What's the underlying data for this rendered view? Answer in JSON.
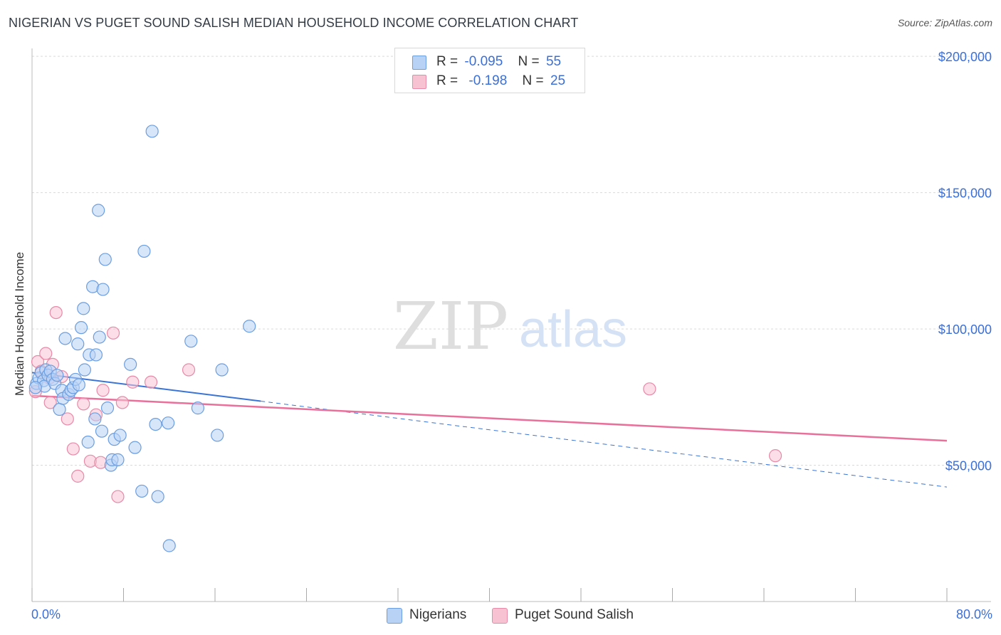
{
  "title": "NIGERIAN VS PUGET SOUND SALISH MEDIAN HOUSEHOLD INCOME CORRELATION CHART",
  "source": "Source: ZipAtlas.com",
  "watermark": {
    "zip": "ZIP",
    "atlas": "atlas"
  },
  "colors": {
    "blue_fill": "#b8d2f5",
    "blue_stroke": "#6b9ee0",
    "blue_line": "#3a74d6",
    "pink_fill": "#f7c3d3",
    "pink_stroke": "#e68aa8",
    "pink_line": "#e8709a",
    "axis_text": "#3a6fd8",
    "grid": "#d9d9d9"
  },
  "legend_top": {
    "rows": [
      {
        "r_label": "R =",
        "r_value": "-0.095",
        "n_label": "N =",
        "n_value": "55"
      },
      {
        "r_label": "R =",
        "r_value": "-0.198",
        "n_label": "N =",
        "n_value": "25"
      }
    ]
  },
  "legend_bottom": {
    "nigerians": "Nigerians",
    "puget": "Puget Sound Salish"
  },
  "x_axis": {
    "left_label": "0.0%",
    "right_label": "80.0%"
  },
  "chart_data": {
    "type": "scatter",
    "title": "NIGERIAN VS PUGET SOUND SALISH MEDIAN HOUSEHOLD INCOME CORRELATION CHART",
    "xlabel": "",
    "ylabel": "Median Household Income",
    "xlim": [
      0,
      80
    ],
    "ylim": [
      0,
      205000
    ],
    "y_ticks": [
      {
        "value": 50000,
        "label": "$50,000"
      },
      {
        "value": 100000,
        "label": "$100,000"
      },
      {
        "value": 150000,
        "label": "$150,000"
      },
      {
        "value": 200000,
        "label": "$200,000"
      }
    ],
    "x_tick_values": [
      0,
      8,
      16,
      24,
      32,
      40,
      48,
      56,
      64,
      72,
      80
    ],
    "series": [
      {
        "name": "Nigerians",
        "color": "blue",
        "points": [
          [
            0.4,
            80000
          ],
          [
            0.6,
            82000
          ],
          [
            0.8,
            84000
          ],
          [
            1.0,
            81000
          ],
          [
            1.1,
            79000
          ],
          [
            1.2,
            85000
          ],
          [
            1.4,
            83000
          ],
          [
            1.6,
            84500
          ],
          [
            1.8,
            81500
          ],
          [
            2.0,
            80000
          ],
          [
            2.2,
            83000
          ],
          [
            2.4,
            70500
          ],
          [
            2.6,
            77500
          ],
          [
            2.7,
            74500
          ],
          [
            2.9,
            96500
          ],
          [
            3.2,
            76000
          ],
          [
            3.4,
            77500
          ],
          [
            3.6,
            78500
          ],
          [
            3.8,
            81500
          ],
          [
            4.0,
            94500
          ],
          [
            4.1,
            79500
          ],
          [
            4.3,
            100500
          ],
          [
            4.5,
            107500
          ],
          [
            4.6,
            85000
          ],
          [
            4.9,
            58500
          ],
          [
            5.0,
            90500
          ],
          [
            5.3,
            115500
          ],
          [
            5.5,
            67000
          ],
          [
            5.6,
            90500
          ],
          [
            5.8,
            143500
          ],
          [
            5.9,
            97000
          ],
          [
            6.1,
            62500
          ],
          [
            6.2,
            114500
          ],
          [
            6.4,
            125500
          ],
          [
            6.6,
            71000
          ],
          [
            6.9,
            50000
          ],
          [
            7.0,
            52000
          ],
          [
            7.2,
            59500
          ],
          [
            7.5,
            52000
          ],
          [
            7.7,
            61000
          ],
          [
            8.6,
            87000
          ],
          [
            9.0,
            56500
          ],
          [
            9.6,
            40500
          ],
          [
            9.8,
            128500
          ],
          [
            10.5,
            172500
          ],
          [
            10.8,
            65000
          ],
          [
            11.0,
            38500
          ],
          [
            11.9,
            65500
          ],
          [
            12.0,
            20500
          ],
          [
            13.9,
            95500
          ],
          [
            14.5,
            71000
          ],
          [
            16.2,
            61000
          ],
          [
            16.6,
            85000
          ],
          [
            19.0,
            101000
          ],
          [
            0.3,
            78500
          ]
        ]
      },
      {
        "name": "Puget Sound Salish",
        "color": "pink",
        "points": [
          [
            0.3,
            77000
          ],
          [
            0.5,
            88000
          ],
          [
            0.8,
            84500
          ],
          [
            1.2,
            91000
          ],
          [
            1.5,
            82000
          ],
          [
            1.6,
            73000
          ],
          [
            1.8,
            87000
          ],
          [
            2.1,
            106000
          ],
          [
            2.6,
            82500
          ],
          [
            3.1,
            67000
          ],
          [
            3.6,
            56000
          ],
          [
            4.0,
            46000
          ],
          [
            4.5,
            72500
          ],
          [
            5.1,
            51500
          ],
          [
            5.6,
            68500
          ],
          [
            6.0,
            51000
          ],
          [
            6.2,
            77500
          ],
          [
            7.1,
            98500
          ],
          [
            7.5,
            38500
          ],
          [
            7.9,
            73000
          ],
          [
            8.8,
            80500
          ],
          [
            10.4,
            80500
          ],
          [
            13.7,
            85000
          ],
          [
            54.0,
            78000
          ],
          [
            65.0,
            53500
          ]
        ]
      }
    ],
    "trend_lines": [
      {
        "series": "Nigerians",
        "solid": {
          "x": [
            0,
            20
          ],
          "y": [
            84000,
            73500
          ]
        },
        "dashed": {
          "x": [
            20,
            80
          ],
          "y": [
            73500,
            42000
          ]
        }
      },
      {
        "series": "Puget Sound Salish",
        "solid": {
          "x": [
            0,
            80
          ],
          "y": [
            75500,
            59000
          ]
        }
      }
    ]
  }
}
